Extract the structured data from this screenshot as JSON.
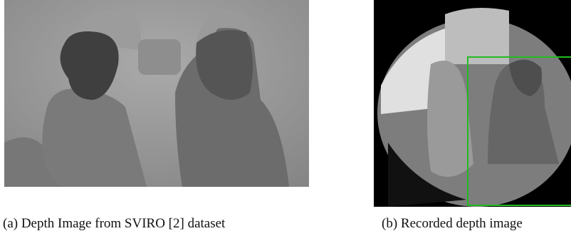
{
  "figure": {
    "panels": [
      {
        "caption": "(a) Depth Image from SVIRO [2] dataset"
      },
      {
        "caption": "(b) Recorded depth image"
      }
    ]
  }
}
